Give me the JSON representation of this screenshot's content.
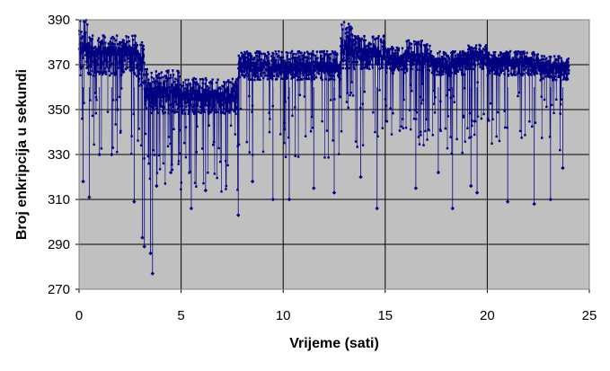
{
  "chart_data": {
    "type": "scatter",
    "title": "",
    "xlabel": "Vrijeme (sati)",
    "ylabel": "Broj enkripcija u sekundi",
    "xlim": [
      0,
      25
    ],
    "ylim": [
      270,
      390
    ],
    "x_ticks": [
      "0",
      "5",
      "10",
      "15",
      "20",
      "25"
    ],
    "y_ticks": [
      "270",
      "290",
      "310",
      "330",
      "350",
      "370",
      "390"
    ],
    "grid": "major gridlines on both axes",
    "legend": "none",
    "plot_background": "#c0c0c0",
    "series_color": "#000080",
    "series": [
      {
        "points_note": "dense per-second measurements; band level by time segment",
        "segments": [
          {
            "x": [
              0.0,
              0.5
            ],
            "center": 378,
            "high": 390,
            "low": 365
          },
          {
            "x": [
              0.5,
              2.8
            ],
            "center": 376,
            "high": 383,
            "low": 365
          },
          {
            "x": [
              2.8,
              3.2
            ],
            "center": 374,
            "high": 380,
            "low": 360
          },
          {
            "x": [
              3.2,
              5.0
            ],
            "center": 358,
            "high": 368,
            "low": 348
          },
          {
            "x": [
              5.0,
              7.8
            ],
            "center": 356,
            "high": 364,
            "low": 348
          },
          {
            "x": [
              7.8,
              12.8
            ],
            "center": 369,
            "high": 376,
            "low": 363
          },
          {
            "x": [
              12.8,
              13.4
            ],
            "center": 376,
            "high": 390,
            "low": 368
          },
          {
            "x": [
              13.4,
              15.0
            ],
            "center": 375,
            "high": 383,
            "low": 368
          },
          {
            "x": [
              15.0,
              16.0
            ],
            "center": 372,
            "high": 378,
            "low": 366
          },
          {
            "x": [
              16.0,
              17.2
            ],
            "center": 373,
            "high": 381,
            "low": 367
          },
          {
            "x": [
              17.2,
              19.0
            ],
            "center": 371,
            "high": 376,
            "low": 365
          },
          {
            "x": [
              19.0,
              20.0
            ],
            "center": 374,
            "high": 379,
            "low": 368
          },
          {
            "x": [
              20.0,
              22.5
            ],
            "center": 371,
            "high": 376,
            "low": 365
          },
          {
            "x": [
              22.5,
              24.0
            ],
            "center": 369,
            "high": 374,
            "low": 363
          }
        ],
        "outliers": [
          {
            "x": 0.2,
            "y": 318
          },
          {
            "x": 0.5,
            "y": 311
          },
          {
            "x": 1.0,
            "y": 330
          },
          {
            "x": 1.6,
            "y": 330
          },
          {
            "x": 2.7,
            "y": 309
          },
          {
            "x": 3.1,
            "y": 293
          },
          {
            "x": 3.2,
            "y": 289
          },
          {
            "x": 3.5,
            "y": 286
          },
          {
            "x": 3.6,
            "y": 277
          },
          {
            "x": 3.8,
            "y": 316
          },
          {
            "x": 4.5,
            "y": 322
          },
          {
            "x": 5.5,
            "y": 306
          },
          {
            "x": 6.2,
            "y": 314
          },
          {
            "x": 7.8,
            "y": 303
          },
          {
            "x": 9.5,
            "y": 310
          },
          {
            "x": 10.3,
            "y": 310
          },
          {
            "x": 12.5,
            "y": 313
          },
          {
            "x": 14.6,
            "y": 306
          },
          {
            "x": 18.3,
            "y": 306
          },
          {
            "x": 19.2,
            "y": 316
          },
          {
            "x": 19.5,
            "y": 313
          },
          {
            "x": 21.0,
            "y": 309
          },
          {
            "x": 23.1,
            "y": 310
          },
          {
            "x": 23.7,
            "y": 324
          },
          {
            "x": 16.5,
            "y": 315
          },
          {
            "x": 22.3,
            "y": 308
          },
          {
            "x": 11.5,
            "y": 315
          },
          {
            "x": 8.5,
            "y": 318
          },
          {
            "x": 13.8,
            "y": 320
          },
          {
            "x": 17.6,
            "y": 322
          }
        ]
      }
    ]
  }
}
